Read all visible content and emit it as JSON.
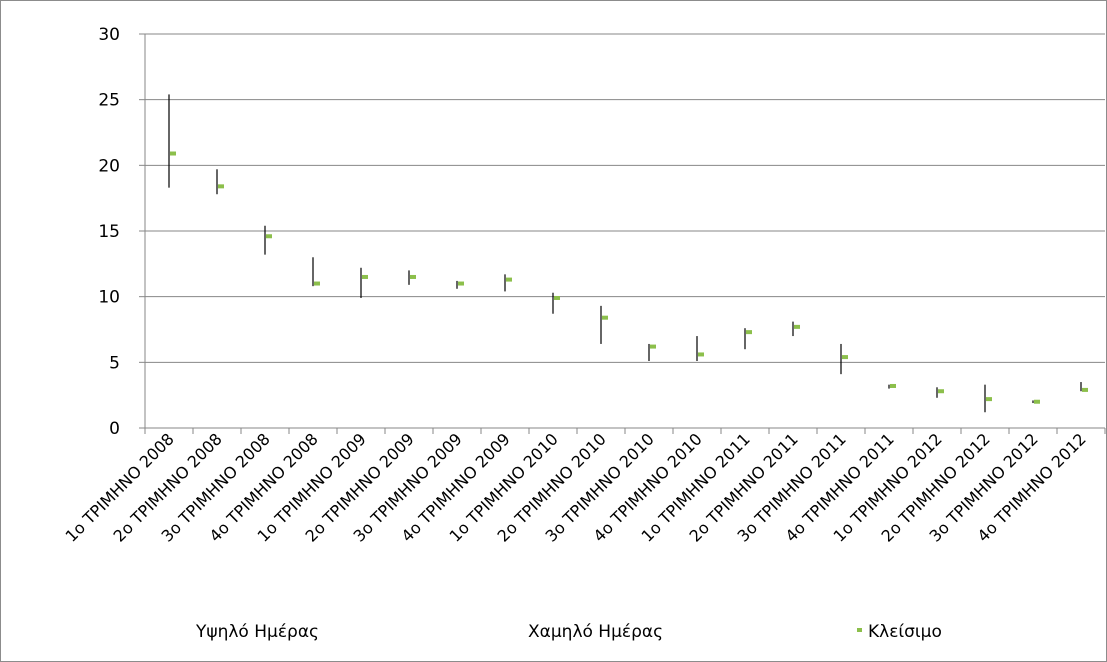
{
  "chart_data": {
    "type": "stock-hlc",
    "categories": [
      "1o ΤΡΙΜΗΝΟ 2008",
      "2o ΤΡΙΜΗΝΟ 2008",
      "3o ΤΡΙΜΗΝΟ 2008",
      "4o ΤΡΙΜΗΝΟ 2008",
      "1o ΤΡΙΜΗΝΟ 2009",
      "2o ΤΡΙΜΗΝΟ 2009",
      "3o ΤΡΙΜΗΝΟ 2009",
      "4o ΤΡΙΜΗΝΟ 2009",
      "1o ΤΡΙΜΗΝΟ 2010",
      "2o ΤΡΙΜΗΝΟ 2010",
      "3o ΤΡΙΜΗΝΟ 2010",
      "4o ΤΡΙΜΗΝΟ 2010",
      "1o ΤΡΙΜΗΝΟ 2011",
      "2o ΤΡΙΜΗΝΟ 2011",
      "3o ΤΡΙΜΗΝΟ 2011",
      "4o ΤΡΙΜΗΝΟ 2011",
      "1o ΤΡΙΜΗΝΟ 2012",
      "2o ΤΡΙΜΗΝΟ 2012",
      "3o ΤΡΙΜΗΝΟ 2012",
      "4o ΤΡΙΜΗΝΟ 2012"
    ],
    "series": [
      {
        "name": "Υψηλό Ημέρας",
        "values": [
          25.4,
          19.7,
          15.4,
          13.0,
          12.2,
          12.0,
          11.2,
          11.7,
          10.3,
          9.3,
          6.4,
          7.0,
          7.6,
          8.1,
          6.4,
          3.3,
          3.1,
          3.3,
          2.1,
          3.5
        ]
      },
      {
        "name": "Χαμηλό Ημέρας",
        "values": [
          18.3,
          17.8,
          13.2,
          10.8,
          9.9,
          10.9,
          10.6,
          10.4,
          8.7,
          6.4,
          5.1,
          5.1,
          6.0,
          7.0,
          4.1,
          3.0,
          2.3,
          1.2,
          1.9,
          2.8
        ]
      },
      {
        "name": "Κλείσιμο",
        "values": [
          20.9,
          18.4,
          14.6,
          11.0,
          11.5,
          11.5,
          11.0,
          11.3,
          9.9,
          8.4,
          6.2,
          5.6,
          7.3,
          7.7,
          5.4,
          3.2,
          2.8,
          2.2,
          2.0,
          2.9
        ]
      }
    ],
    "y_ticks": [
      "0",
      "5",
      "10",
      "15",
      "20",
      "25",
      "30"
    ],
    "ylim": [
      0,
      30
    ],
    "grid": true,
    "legend_position": "bottom",
    "colors": {
      "range_line": "#000000",
      "close_marker": "#8cbf4b",
      "gridline": "#878787",
      "axis": "#878787"
    }
  }
}
